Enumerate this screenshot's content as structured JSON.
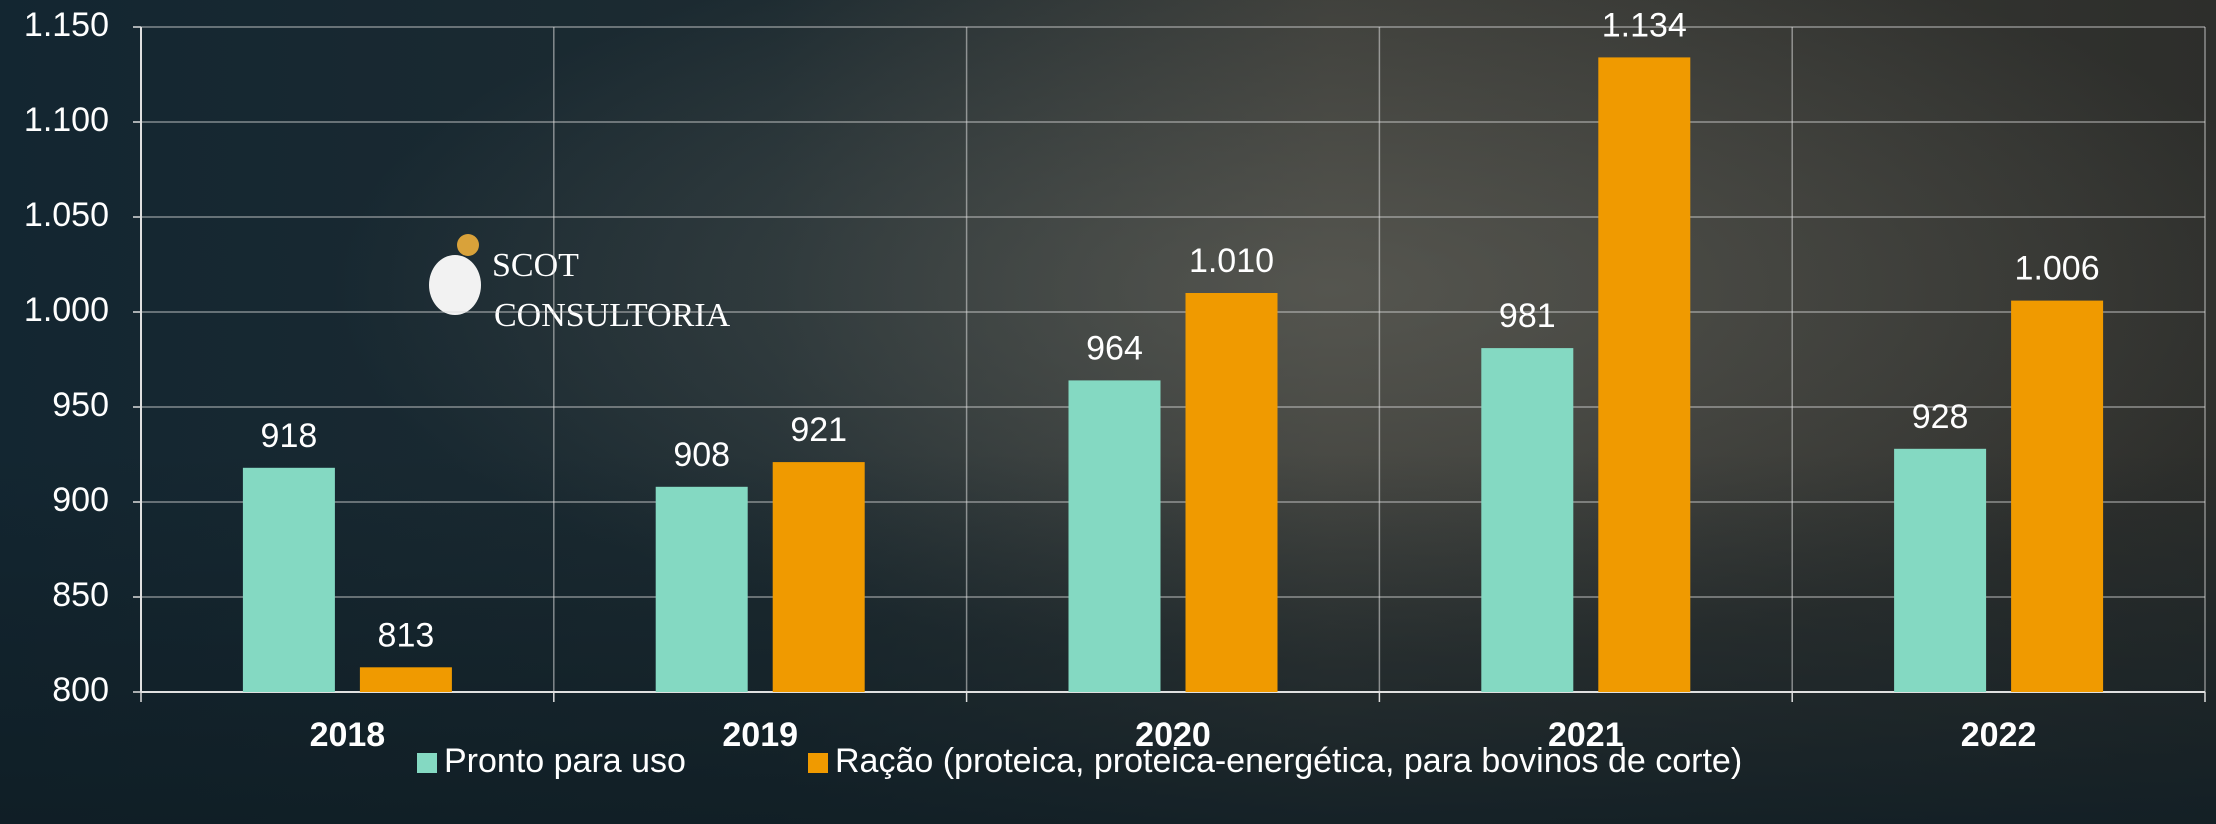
{
  "chart_data": {
    "type": "bar",
    "categories": [
      "2018",
      "2019",
      "2020",
      "2021",
      "2022"
    ],
    "series": [
      {
        "name": "Pronto para uso",
        "color": "#84d9c2",
        "values": [
          918,
          908,
          964,
          981,
          928
        ],
        "value_labels": [
          "918",
          "908",
          "964",
          "981",
          "928"
        ]
      },
      {
        "name": "Ração (proteica, proteica-energética, para bovinos de corte)",
        "color": "#f09a00",
        "values": [
          813,
          921,
          1010,
          1134,
          1006
        ],
        "value_labels": [
          "813",
          "921",
          "1.010",
          "1.134",
          "1.006"
        ]
      }
    ],
    "ylim": [
      800,
      1150
    ],
    "yticks": [
      800,
      850,
      900,
      950,
      {
        "value": 1000,
        "label": "1.000"
      },
      {
        "value": 1050,
        "label": "1.050"
      },
      {
        "value": 1100,
        "label": "1.100"
      },
      {
        "value": 1150,
        "label": "1.150"
      }
    ],
    "grid": true,
    "legend": "bottom",
    "logo_text": [
      "SCOT",
      "CONSULTORIA"
    ]
  }
}
